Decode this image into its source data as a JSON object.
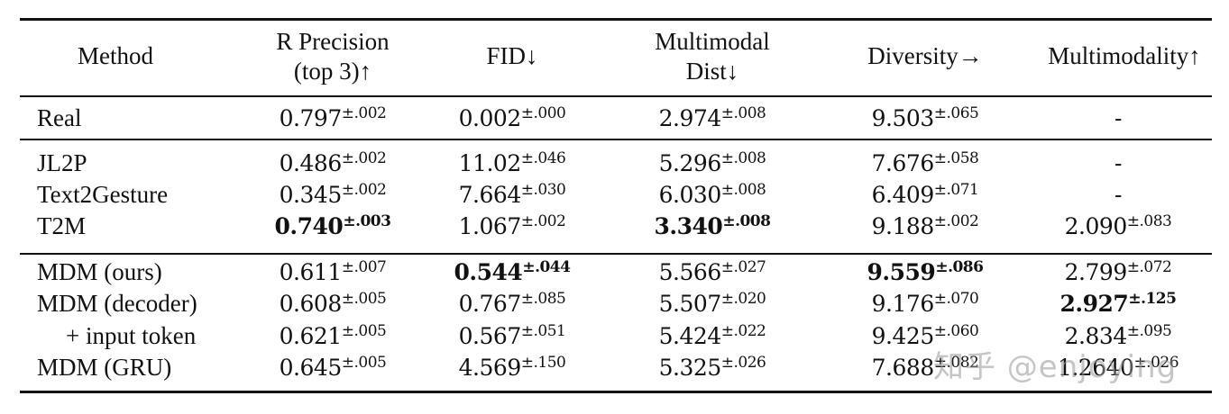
{
  "table": {
    "headers": [
      {
        "line1": "Method",
        "line2": ""
      },
      {
        "line1": "R Precision",
        "line2": "(top 3)↑"
      },
      {
        "line1": "FID↓",
        "line2": ""
      },
      {
        "line1": "Multimodal",
        "line2": "Dist↓"
      },
      {
        "line1": "Diversity→",
        "line2": ""
      },
      {
        "line1": "Multimodality↑",
        "line2": ""
      }
    ],
    "groups": [
      {
        "rows": [
          {
            "method": "Real",
            "r_precision": {
              "v": "0.797",
              "pm": "±.002",
              "bold": false
            },
            "fid": {
              "v": "0.002",
              "pm": "±.000",
              "bold": false
            },
            "mm_dist": {
              "v": "2.974",
              "pm": "±.008",
              "bold": false
            },
            "diversity": {
              "v": "9.503",
              "pm": "±.065",
              "bold": false
            },
            "multimodality": {
              "v": "-",
              "pm": "",
              "bold": false
            }
          }
        ]
      },
      {
        "rows": [
          {
            "method": "JL2P",
            "r_precision": {
              "v": "0.486",
              "pm": "±.002",
              "bold": false
            },
            "fid": {
              "v": "11.02",
              "pm": "±.046",
              "bold": false
            },
            "mm_dist": {
              "v": "5.296",
              "pm": "±.008",
              "bold": false
            },
            "diversity": {
              "v": "7.676",
              "pm": "±.058",
              "bold": false
            },
            "multimodality": {
              "v": "-",
              "pm": "",
              "bold": false
            }
          },
          {
            "method": "Text2Gesture",
            "r_precision": {
              "v": "0.345",
              "pm": "±.002",
              "bold": false
            },
            "fid": {
              "v": "7.664",
              "pm": "±.030",
              "bold": false
            },
            "mm_dist": {
              "v": "6.030",
              "pm": "±.008",
              "bold": false
            },
            "diversity": {
              "v": "6.409",
              "pm": "±.071",
              "bold": false
            },
            "multimodality": {
              "v": "-",
              "pm": "",
              "bold": false
            }
          },
          {
            "method": "T2M",
            "r_precision": {
              "v": "0.740",
              "pm": "±.003",
              "bold": true
            },
            "fid": {
              "v": "1.067",
              "pm": "±.002",
              "bold": false
            },
            "mm_dist": {
              "v": "3.340",
              "pm": "±.008",
              "bold": true
            },
            "diversity": {
              "v": "9.188",
              "pm": "±.002",
              "bold": false
            },
            "multimodality": {
              "v": "2.090",
              "pm": "±.083",
              "bold": false
            }
          }
        ]
      },
      {
        "rows": [
          {
            "method": "MDM (ours)",
            "r_precision": {
              "v": "0.611",
              "pm": "±.007",
              "bold": false
            },
            "fid": {
              "v": "0.544",
              "pm": "±.044",
              "bold": true
            },
            "mm_dist": {
              "v": "5.566",
              "pm": "±.027",
              "bold": false
            },
            "diversity": {
              "v": "9.559",
              "pm": "±.086",
              "bold": true
            },
            "multimodality": {
              "v": "2.799",
              "pm": "±.072",
              "bold": false
            }
          },
          {
            "method": "MDM (decoder)",
            "r_precision": {
              "v": "0.608",
              "pm": "±.005",
              "bold": false
            },
            "fid": {
              "v": "0.767",
              "pm": "±.085",
              "bold": false
            },
            "mm_dist": {
              "v": "5.507",
              "pm": "±.020",
              "bold": false
            },
            "diversity": {
              "v": "9.176",
              "pm": "±.070",
              "bold": false
            },
            "multimodality": {
              "v": "2.927",
              "pm": "±.125",
              "bold": true
            }
          },
          {
            "method": "+ input token",
            "r_precision": {
              "v": "0.621",
              "pm": "±.005",
              "bold": false
            },
            "fid": {
              "v": "0.567",
              "pm": "±.051",
              "bold": false
            },
            "mm_dist": {
              "v": "5.424",
              "pm": "±.022",
              "bold": false
            },
            "diversity": {
              "v": "9.425",
              "pm": "±.060",
              "bold": false
            },
            "multimodality": {
              "v": "2.834",
              "pm": "±.095",
              "bold": false
            }
          },
          {
            "method": "MDM (GRU)",
            "r_precision": {
              "v": "0.645",
              "pm": "±.005",
              "bold": false
            },
            "fid": {
              "v": "4.569",
              "pm": "±.150",
              "bold": false
            },
            "mm_dist": {
              "v": "5.325",
              "pm": "±.026",
              "bold": false
            },
            "diversity": {
              "v": "7.688",
              "pm": "±.082",
              "bold": false
            },
            "multimodality": {
              "v": "1.2640",
              "pm": "±.026",
              "bold": false
            }
          }
        ]
      }
    ]
  },
  "watermark": "知乎 @enjoying"
}
